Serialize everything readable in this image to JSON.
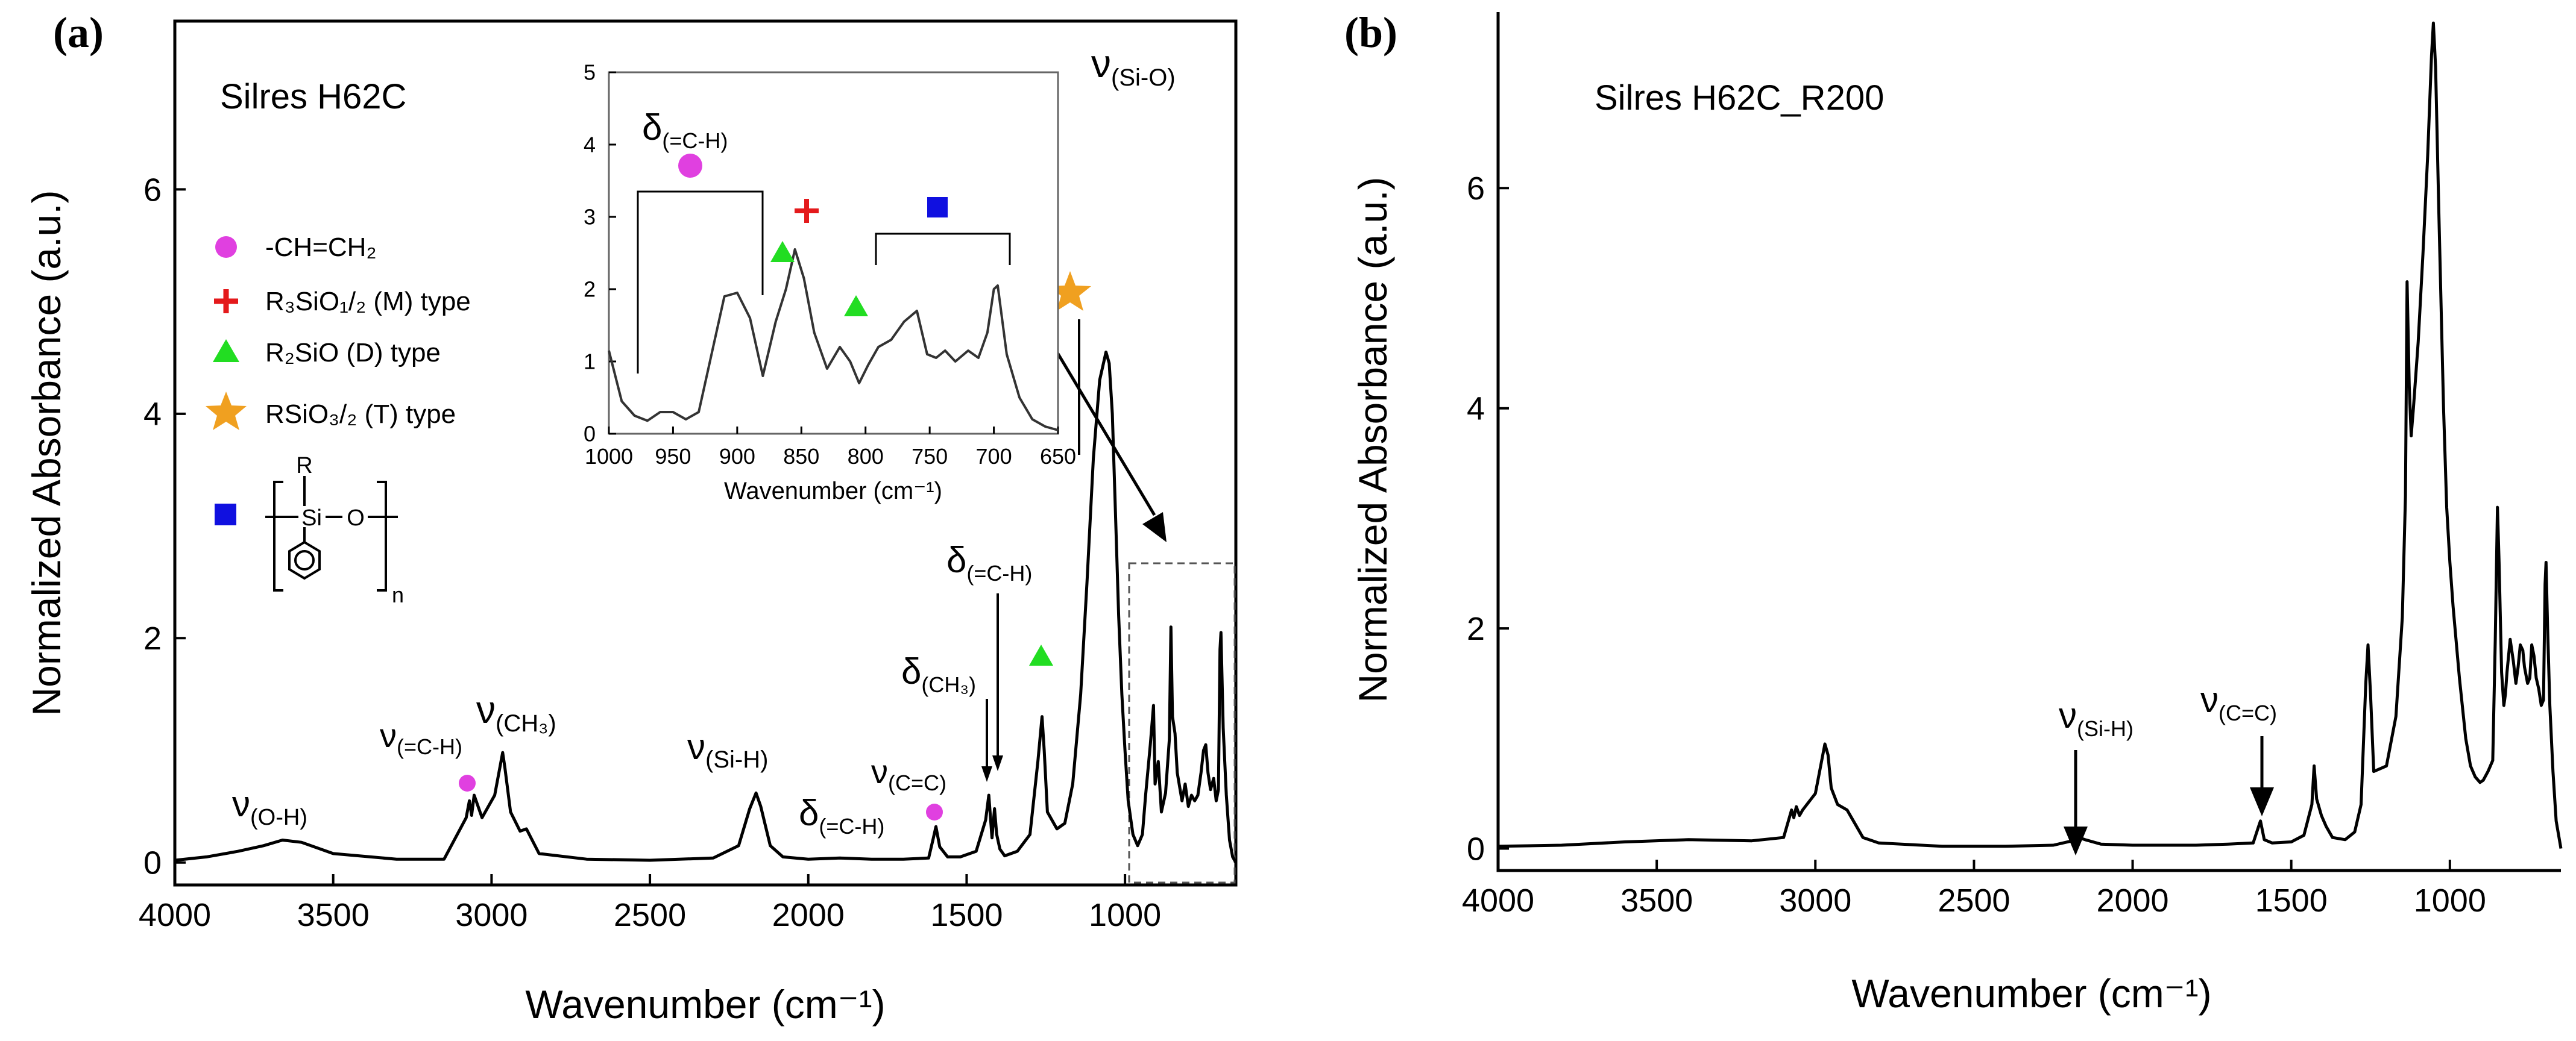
{
  "chart_data": [
    {
      "type": "line",
      "panel_label": "(a)",
      "sample_label": "Silres H62C",
      "xlabel": "Wavenumber (cm⁻¹)",
      "ylabel": "Normalized Absorbance (a.u.)",
      "xlim": [
        4000,
        650
      ],
      "ylim": [
        -0.2,
        7.5
      ],
      "x_ticks": [
        4000,
        3500,
        3000,
        2500,
        2000,
        1500,
        1000
      ],
      "y_ticks": [
        0,
        2,
        4,
        6
      ],
      "grid": false,
      "series": [
        {
          "x": [
            4000,
            3900,
            3800,
            3720,
            3660,
            3600,
            3500,
            3300,
            3150,
            3080,
            3070,
            3063,
            3055,
            3030,
            2990,
            2965,
            2958,
            2940,
            2910,
            2890,
            2850,
            2700,
            2500,
            2300,
            2220,
            2185,
            2165,
            2150,
            2120,
            2080,
            2000,
            1900,
            1800,
            1700,
            1620,
            1605,
            1597,
            1585,
            1560,
            1520,
            1470,
            1440,
            1430,
            1420,
            1412,
            1405,
            1395,
            1380,
            1340,
            1300,
            1275,
            1262,
            1255,
            1245,
            1215,
            1190,
            1165,
            1140,
            1120,
            1100,
            1080,
            1060,
            1050,
            1040,
            1030,
            1020,
            1010,
            1000,
            990,
            975,
            960,
            945,
            935,
            920,
            910,
            905,
            895,
            885,
            872,
            860,
            855,
            850,
            842,
            835,
            820,
            810,
            800,
            790,
            780,
            770,
            760,
            752,
            745,
            738,
            730,
            720,
            712,
            705,
            700,
            697,
            690,
            680,
            670,
            660,
            650
          ],
          "y": [
            0.02,
            0.05,
            0.1,
            0.15,
            0.2,
            0.18,
            0.08,
            0.03,
            0.03,
            0.4,
            0.55,
            0.42,
            0.6,
            0.4,
            0.6,
            0.98,
            0.85,
            0.45,
            0.28,
            0.3,
            0.08,
            0.03,
            0.02,
            0.04,
            0.15,
            0.48,
            0.62,
            0.5,
            0.15,
            0.05,
            0.03,
            0.04,
            0.03,
            0.03,
            0.04,
            0.22,
            0.32,
            0.14,
            0.05,
            0.05,
            0.1,
            0.38,
            0.6,
            0.22,
            0.48,
            0.25,
            0.12,
            0.06,
            0.1,
            0.25,
            0.9,
            1.3,
            1.0,
            0.45,
            0.3,
            0.35,
            0.7,
            1.5,
            2.5,
            3.6,
            4.3,
            4.55,
            4.45,
            4.0,
            3.1,
            2.2,
            1.5,
            1.0,
            0.55,
            0.25,
            0.15,
            0.25,
            0.6,
            1.05,
            1.4,
            0.7,
            0.9,
            0.45,
            0.62,
            1.1,
            2.1,
            1.3,
            1.15,
            0.8,
            0.55,
            0.7,
            0.5,
            0.6,
            0.55,
            0.6,
            0.8,
            1.0,
            1.05,
            0.8,
            0.65,
            0.75,
            0.55,
            0.65,
            1.9,
            2.05,
            1.2,
            0.6,
            0.2,
            0.05,
            0.0
          ]
        }
      ],
      "annotations": [
        "ν(O-H)",
        "ν(=C-H)",
        "ν(CH₃)",
        "ν(Si-H)",
        "δ(=C-H)",
        "ν(C=C)",
        "δ(CH₃)",
        "δ(=C-H)",
        "ν(Si-O)"
      ],
      "legend": {
        "position": "left",
        "entries": [
          {
            "label": "-CH=CH₂",
            "marker": "circle",
            "color": "#e040e0"
          },
          {
            "label": "R₃SiO₁/₂ (M) type",
            "marker": "plus",
            "color": "#e41a1c"
          },
          {
            "label": "R₂SiO (D) type",
            "marker": "triangle",
            "color": "#22dd22"
          },
          {
            "label": "RSiO₃/₂ (T) type",
            "marker": "star",
            "color": "#f0a020"
          },
          {
            "label": "",
            "marker": "square",
            "color": "#1010e0"
          }
        ],
        "structure": {
          "top": "R",
          "center": "Si",
          "right": "O",
          "subscript": "n"
        }
      },
      "inset": {
        "xlabel": "Wavenumber (cm⁻¹)",
        "xlim": [
          1000,
          650
        ],
        "ylim": [
          0,
          5
        ],
        "x_ticks": [
          1000,
          950,
          900,
          850,
          800,
          750,
          700,
          650
        ],
        "y_ticks": [
          0,
          1,
          2,
          3,
          4,
          5
        ],
        "annotation": "δ(=C-H)",
        "series": [
          {
            "x": [
              1000,
              990,
              980,
              970,
              960,
              950,
              940,
              930,
              920,
              910,
              900,
              890,
              880,
              870,
              862,
              855,
              848,
              840,
              830,
              820,
              812,
              805,
              798,
              790,
              780,
              770,
              760,
              752,
              745,
              738,
              730,
              720,
              712,
              705,
              700,
              697,
              690,
              680,
              670,
              660,
              650
            ],
            "y": [
              1.15,
              0.45,
              0.25,
              0.18,
              0.3,
              0.3,
              0.2,
              0.3,
              1.1,
              1.9,
              1.95,
              1.6,
              0.8,
              1.55,
              2.0,
              2.55,
              2.15,
              1.4,
              0.9,
              1.2,
              1.0,
              0.7,
              0.95,
              1.2,
              1.3,
              1.55,
              1.7,
              1.1,
              1.05,
              1.15,
              1.0,
              1.15,
              1.05,
              1.4,
              2.0,
              2.05,
              1.1,
              0.5,
              0.2,
              0.1,
              0.05
            ]
          }
        ]
      }
    },
    {
      "type": "line",
      "panel_label": "(b)",
      "sample_label": "Silres H62C_R200",
      "xlabel": "Wavenumber (cm⁻¹)",
      "ylabel": "Normalized Absorbance (a.u.)",
      "xlim": [
        4000,
        650
      ],
      "ylim": [
        -0.2,
        7.6
      ],
      "x_ticks": [
        4000,
        3500,
        3000,
        2500,
        2000,
        1500,
        1000
      ],
      "y_ticks": [
        0,
        2,
        4,
        6
      ],
      "grid": false,
      "series": [
        {
          "x": [
            4000,
            3800,
            3600,
            3400,
            3200,
            3100,
            3075,
            3068,
            3060,
            3050,
            3040,
            3000,
            2970,
            2960,
            2950,
            2930,
            2900,
            2880,
            2850,
            2800,
            2600,
            2400,
            2250,
            2190,
            2170,
            2150,
            2100,
            2000,
            1900,
            1800,
            1700,
            1620,
            1603,
            1597,
            1585,
            1560,
            1500,
            1460,
            1435,
            1428,
            1420,
            1405,
            1390,
            1370,
            1330,
            1300,
            1280,
            1265,
            1258,
            1250,
            1240,
            1200,
            1170,
            1150,
            1140,
            1135,
            1128,
            1122,
            1115,
            1100,
            1085,
            1070,
            1058,
            1052,
            1045,
            1035,
            1020,
            1010,
            1000,
            990,
            970,
            950,
            935,
            920,
            905,
            895,
            880,
            865,
            857,
            850,
            845,
            837,
            830,
            825,
            820,
            810,
            800,
            792,
            785,
            778,
            770,
            765,
            755,
            748,
            742,
            735,
            728,
            720,
            712,
            705,
            700,
            697,
            692,
            685,
            675,
            665,
            650
          ],
          "y": [
            0.02,
            0.03,
            0.06,
            0.08,
            0.07,
            0.1,
            0.35,
            0.28,
            0.38,
            0.3,
            0.35,
            0.5,
            0.95,
            0.85,
            0.55,
            0.4,
            0.35,
            0.25,
            0.1,
            0.05,
            0.02,
            0.02,
            0.03,
            0.07,
            0.1,
            0.08,
            0.04,
            0.03,
            0.03,
            0.03,
            0.04,
            0.05,
            0.2,
            0.25,
            0.08,
            0.05,
            0.06,
            0.12,
            0.4,
            0.75,
            0.45,
            0.3,
            0.2,
            0.1,
            0.08,
            0.15,
            0.4,
            1.5,
            1.85,
            1.4,
            0.7,
            0.75,
            1.2,
            2.1,
            3.2,
            5.15,
            4.2,
            3.75,
            4.0,
            4.6,
            5.4,
            6.3,
            7.2,
            7.5,
            7.1,
            5.8,
            4.0,
            3.1,
            2.6,
            2.2,
            1.55,
            1.0,
            0.75,
            0.65,
            0.6,
            0.62,
            0.7,
            0.8,
            1.9,
            3.1,
            2.6,
            1.6,
            1.3,
            1.4,
            1.6,
            1.9,
            1.7,
            1.5,
            1.65,
            1.85,
            1.8,
            1.65,
            1.5,
            1.55,
            1.85,
            1.75,
            1.55,
            1.45,
            1.3,
            1.35,
            2.4,
            2.6,
            2.0,
            1.3,
            0.7,
            0.25,
            0.0
          ]
        }
      ],
      "annotations": [
        "ν(Si-H)",
        "ν(C=C)"
      ]
    }
  ]
}
